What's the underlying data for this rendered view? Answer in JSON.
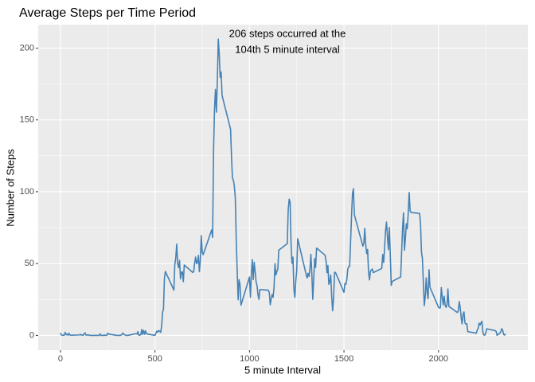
{
  "chart_data": {
    "type": "line",
    "title": "Average Steps per Time Period",
    "xlabel": "5 minute Interval",
    "ylabel": "Number of Steps",
    "annotation": [
      "206 steps occurred at the",
      "104th 5 minute interval"
    ],
    "xlim": [
      -117.75,
      2472.75
    ],
    "xticks": [
      0,
      500,
      1000,
      1500,
      2000
    ],
    "xminor": [
      250,
      750,
      1250,
      1750,
      2250
    ],
    "ylim": [
      -10.3,
      216.3
    ],
    "yticks": [
      0,
      50,
      100,
      150,
      200
    ],
    "yminor": [
      25,
      75,
      125,
      175
    ],
    "grid": true,
    "x": [
      0,
      5,
      10,
      15,
      20,
      25,
      30,
      35,
      40,
      45,
      50,
      55,
      100,
      105,
      110,
      115,
      120,
      125,
      130,
      135,
      140,
      145,
      150,
      155,
      200,
      205,
      210,
      215,
      220,
      225,
      230,
      235,
      240,
      245,
      250,
      255,
      300,
      305,
      310,
      315,
      320,
      325,
      330,
      335,
      340,
      345,
      350,
      355,
      400,
      405,
      410,
      415,
      420,
      425,
      430,
      435,
      440,
      445,
      450,
      455,
      500,
      505,
      510,
      515,
      520,
      525,
      530,
      535,
      540,
      545,
      550,
      555,
      600,
      605,
      610,
      615,
      620,
      625,
      630,
      635,
      640,
      645,
      650,
      655,
      700,
      705,
      710,
      715,
      720,
      725,
      730,
      735,
      740,
      745,
      750,
      755,
      800,
      805,
      810,
      815,
      820,
      825,
      830,
      835,
      840,
      845,
      850,
      855,
      900,
      905,
      910,
      915,
      920,
      925,
      930,
      935,
      940,
      945,
      950,
      955,
      1000,
      1005,
      1010,
      1015,
      1020,
      1025,
      1030,
      1035,
      1040,
      1045,
      1050,
      1055,
      1100,
      1105,
      1110,
      1115,
      1120,
      1125,
      1130,
      1135,
      1140,
      1145,
      1150,
      1155,
      1200,
      1205,
      1210,
      1215,
      1220,
      1225,
      1230,
      1235,
      1240,
      1245,
      1250,
      1255,
      1300,
      1305,
      1310,
      1315,
      1320,
      1325,
      1330,
      1335,
      1340,
      1345,
      1350,
      1355,
      1400,
      1405,
      1410,
      1415,
      1420,
      1425,
      1430,
      1435,
      1440,
      1445,
      1450,
      1455,
      1500,
      1505,
      1510,
      1515,
      1520,
      1525,
      1530,
      1535,
      1540,
      1545,
      1550,
      1555,
      1600,
      1605,
      1610,
      1615,
      1620,
      1625,
      1630,
      1635,
      1640,
      1645,
      1650,
      1655,
      1700,
      1705,
      1710,
      1715,
      1720,
      1725,
      1730,
      1735,
      1740,
      1745,
      1750,
      1755,
      1800,
      1805,
      1810,
      1815,
      1820,
      1825,
      1830,
      1835,
      1840,
      1845,
      1850,
      1855,
      1900,
      1905,
      1910,
      1915,
      1920,
      1925,
      1930,
      1935,
      1940,
      1945,
      1950,
      1955,
      2000,
      2005,
      2010,
      2015,
      2020,
      2025,
      2030,
      2035,
      2040,
      2045,
      2050,
      2055,
      2100,
      2105,
      2110,
      2115,
      2120,
      2125,
      2130,
      2135,
      2140,
      2145,
      2150,
      2155,
      2200,
      2205,
      2210,
      2215,
      2220,
      2225,
      2230,
      2235,
      2240,
      2245,
      2250,
      2255,
      2300,
      2305,
      2310,
      2315,
      2320,
      2325,
      2330,
      2335,
      2340,
      2345,
      2350,
      2355
    ],
    "series": [
      {
        "name": "steps",
        "color": "#4682b4",
        "values": [
          1.7,
          0.3,
          0.1,
          0.2,
          0.1,
          2.1,
          0.5,
          0.9,
          0,
          1.5,
          0.3,
          0.1,
          0.3,
          0.7,
          0.2,
          0.3,
          0,
          1.1,
          1.8,
          0.2,
          0.2,
          0.4,
          0.3,
          0,
          0,
          0,
          1.1,
          0,
          0,
          0.1,
          0,
          0.2,
          0,
          0,
          1.5,
          0.9,
          0,
          0,
          0,
          0,
          0.2,
          0.6,
          1.6,
          0.6,
          0.5,
          0.1,
          0,
          0,
          1.2,
          0.9,
          2.6,
          0,
          0.3,
          0.4,
          4.1,
          0.7,
          3.5,
          0.8,
          3.1,
          1.1,
          0,
          1.6,
          3,
          2.2,
          3.3,
          3,
          2.1,
          6.1,
          16,
          18.3,
          39.5,
          44.5,
          31.5,
          49.3,
          53.8,
          63.5,
          50,
          47.1,
          52.2,
          39.3,
          44,
          44.2,
          37.4,
          49,
          43.8,
          44.4,
          50.5,
          54.5,
          49.9,
          51,
          55.7,
          44.3,
          52.3,
          69.5,
          57.8,
          56.2,
          73.4,
          68.2,
          129.4,
          157.5,
          171.2,
          155.4,
          177.3,
          206.2,
          195.9,
          179.6,
          183.4,
          167,
          143.5,
          124,
          109.1,
          108.1,
          103.7,
          95.9,
          66.2,
          45.2,
          24.8,
          38.8,
          35,
          21,
          40.6,
          26.5,
          42.4,
          52.7,
          38.9,
          50.8,
          44.3,
          37.4,
          34.7,
          28.3,
          25.1,
          31.9,
          31.4,
          29.7,
          21.3,
          25.5,
          28.4,
          26.5,
          33.4,
          50,
          42,
          44.6,
          46,
          59.3,
          63.9,
          87.7,
          94.8,
          92.8,
          63.4,
          50.2,
          54.5,
          32.4,
          26.5,
          37.7,
          45.1,
          67.3,
          42.3,
          39.9,
          43.3,
          41,
          46.2,
          56.4,
          42.8,
          25.1,
          40,
          53.5,
          47.3,
          60.8,
          55.8,
          51.9,
          43.6,
          48.7,
          35.5,
          37.5,
          42,
          27,
          17.1,
          26.1,
          43.8,
          43.8,
          30,
          36.1,
          35.5,
          38.8,
          46,
          47.8,
          48.1,
          65.3,
          82.9,
          98.7,
          102.1,
          84,
          62.1,
          64.1,
          74.5,
          63.2,
          56.9,
          59.8,
          43.9,
          38.6,
          44.7,
          45.5,
          46.2,
          43.7,
          46.6,
          56.3,
          50.7,
          61.2,
          72.7,
          78.9,
          68.9,
          59.7,
          75.1,
          56.5,
          34.8,
          37.5,
          40.7,
          58,
          74.7,
          85.3,
          59.3,
          67.8,
          77.7,
          74.2,
          85.3,
          99.5,
          86.6,
          85.6,
          84.9,
          77.8,
          58,
          53.4,
          36.3,
          20.7,
          27.4,
          40,
          30.2,
          25.5,
          45.7,
          33.5,
          19.6,
          19,
          19.3,
          33.3,
          26.8,
          21.2,
          27.3,
          21.3,
          19.5,
          21.3,
          32.3,
          20.2,
          15.9,
          17.2,
          23.5,
          19.2,
          12.5,
          8,
          14.7,
          16.3,
          8.7,
          7.8,
          8.1,
          2.6,
          1.5,
          3.7,
          4.8,
          8.5,
          7.1,
          8.7,
          9.8,
          2.2,
          0.3,
          0.1,
          1.6,
          4.6,
          3.3,
          2.8,
          0,
          0.8,
          1,
          1.6,
          2.6,
          4.7,
          3.3,
          0.6,
          0.2,
          1.1
        ]
      }
    ]
  }
}
